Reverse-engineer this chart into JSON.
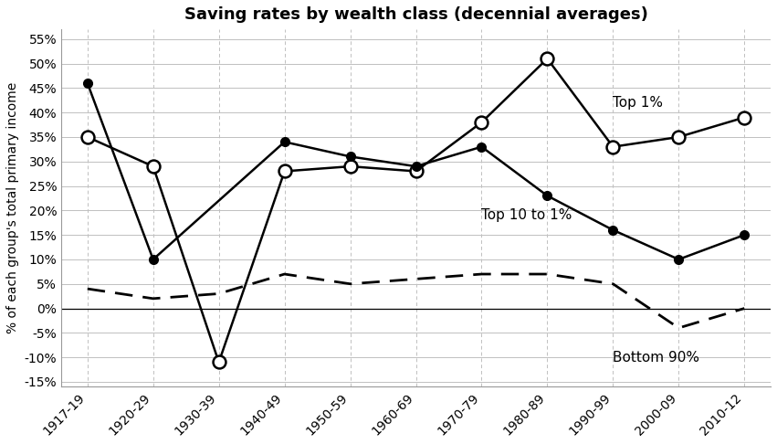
{
  "title": "Saving rates by wealth class (decennial averages)",
  "ylabel": "% of each group's total primary income",
  "x_labels": [
    "1917-19",
    "1920-29",
    "1930-39",
    "1940-49",
    "1950-59",
    "1960-69",
    "1970-79",
    "1980-89",
    "1990-99",
    "2000-09",
    "2010-12"
  ],
  "top1_open": [
    35,
    29,
    -11,
    28,
    29,
    28,
    38,
    51,
    33,
    35,
    39
  ],
  "top10to1_filled": [
    46,
    10,
    null,
    34,
    31,
    29,
    33,
    23,
    16,
    10,
    15
  ],
  "bottom90": [
    4,
    2,
    3,
    7,
    5,
    6,
    7,
    7,
    5,
    -4,
    0
  ],
  "ylim": [
    -16,
    57
  ],
  "yticks": [
    -15,
    -10,
    -5,
    0,
    5,
    10,
    15,
    20,
    25,
    30,
    35,
    40,
    45,
    50,
    55
  ],
  "ytick_labels": [
    "-15%",
    "-10%",
    "-5%",
    "0%",
    "5%",
    "10%",
    "15%",
    "20%",
    "25%",
    "30%",
    "35%",
    "40%",
    "45%",
    "50%",
    "55%"
  ],
  "annotation_top1": {
    "text": "Top 1%",
    "xi": 8,
    "yi": 42
  },
  "annotation_top10to1": {
    "text": "Top 10 to 1%",
    "xi": 6,
    "yi": 19
  },
  "annotation_bottom90": {
    "text": "Bottom 90%",
    "xi": 8,
    "yi": -10
  },
  "background_color": "#ffffff",
  "grid_color": "#c0c0c0",
  "line_color": "#000000"
}
